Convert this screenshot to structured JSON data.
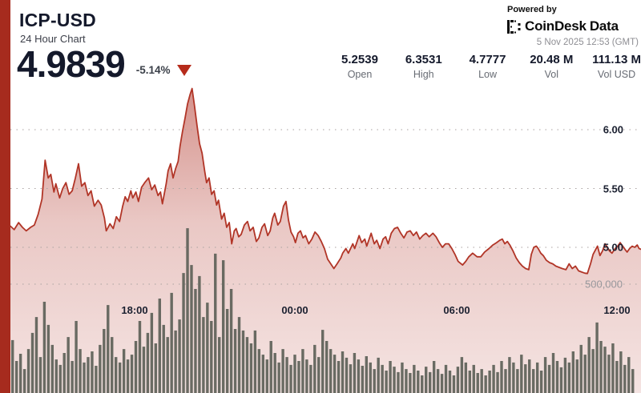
{
  "header": {
    "symbol": "ICP-USD",
    "subtitle": "24 Hour Chart",
    "price": "4.9839",
    "change": "-5.14%",
    "direction": "down"
  },
  "stats": {
    "items": [
      {
        "value": "5.2539",
        "label": "Open"
      },
      {
        "value": "6.3531",
        "label": "High"
      },
      {
        "value": "4.7777",
        "label": "Low"
      },
      {
        "value": "20.48 M",
        "label": "Vol"
      },
      {
        "value": "111.13 M",
        "label": "Vol USD"
      }
    ]
  },
  "branding": {
    "powered_by": "Powered by",
    "logo_text_1": "CoinDesk",
    "logo_text_2": "Data",
    "timestamp": "5 Nov 2025 12:53 (GMT)"
  },
  "colors": {
    "accent_bar": "#a62b1e",
    "line": "#b13527",
    "area_base": "rgb(173,42,30)",
    "volume_bar": "#5d6158",
    "grid_dot": "#a9a2a0",
    "text_dark": "#14192b",
    "text_gray": "#676b73",
    "triangle": "#b62b1b"
  },
  "chart_data": {
    "type": "area",
    "title": "ICP-USD 24 Hour Chart",
    "subtype": "price-line-with-volume-bars",
    "open": 5.2539,
    "high": 6.3531,
    "low": 4.7777,
    "close": 4.9839,
    "volume_base": "20.48 M",
    "volume_usd": "111.13 M",
    "grid": "dotted-horizontal",
    "x_axis": {
      "labels": [
        {
          "label": "18:00",
          "f": 0.197
        },
        {
          "label": "00:00",
          "f": 0.451
        },
        {
          "label": "06:00",
          "f": 0.708
        },
        {
          "label": "12:00",
          "f": 0.962
        }
      ]
    },
    "y_axis_price": {
      "side": "right",
      "ticks": [
        {
          "label": "6.00",
          "value": 6.0
        },
        {
          "label": "5.50",
          "value": 5.5
        },
        {
          "label": "5.00",
          "value": 5.0
        }
      ]
    },
    "y_axis_volume": {
      "side": "right",
      "ticks": [
        {
          "label": "500,000",
          "value": 500000
        }
      ]
    },
    "price_points": [
      [
        0,
        5.18
      ],
      [
        0.006,
        5.15
      ],
      [
        0.013,
        5.21
      ],
      [
        0.019,
        5.17
      ],
      [
        0.025,
        5.14
      ],
      [
        0.032,
        5.17
      ],
      [
        0.038,
        5.19
      ],
      [
        0.044,
        5.28
      ],
      [
        0.05,
        5.41
      ],
      [
        0.055,
        5.74
      ],
      [
        0.06,
        5.59
      ],
      [
        0.064,
        5.62
      ],
      [
        0.069,
        5.47
      ],
      [
        0.072,
        5.54
      ],
      [
        0.078,
        5.42
      ],
      [
        0.083,
        5.5
      ],
      [
        0.088,
        5.55
      ],
      [
        0.093,
        5.45
      ],
      [
        0.098,
        5.48
      ],
      [
        0.103,
        5.59
      ],
      [
        0.108,
        5.71
      ],
      [
        0.113,
        5.52
      ],
      [
        0.118,
        5.55
      ],
      [
        0.123,
        5.44
      ],
      [
        0.128,
        5.48
      ],
      [
        0.133,
        5.35
      ],
      [
        0.139,
        5.4
      ],
      [
        0.144,
        5.36
      ],
      [
        0.149,
        5.25
      ],
      [
        0.152,
        5.14
      ],
      [
        0.158,
        5.2
      ],
      [
        0.163,
        5.16
      ],
      [
        0.168,
        5.26
      ],
      [
        0.173,
        5.22
      ],
      [
        0.178,
        5.35
      ],
      [
        0.182,
        5.43
      ],
      [
        0.186,
        5.39
      ],
      [
        0.191,
        5.48
      ],
      [
        0.194,
        5.42
      ],
      [
        0.199,
        5.47
      ],
      [
        0.203,
        5.39
      ],
      [
        0.208,
        5.51
      ],
      [
        0.213,
        5.55
      ],
      [
        0.219,
        5.59
      ],
      [
        0.224,
        5.49
      ],
      [
        0.229,
        5.53
      ],
      [
        0.234,
        5.44
      ],
      [
        0.238,
        5.47
      ],
      [
        0.241,
        5.37
      ],
      [
        0.247,
        5.54
      ],
      [
        0.25,
        5.65
      ],
      [
        0.254,
        5.71
      ],
      [
        0.258,
        5.59
      ],
      [
        0.262,
        5.67
      ],
      [
        0.266,
        5.73
      ],
      [
        0.269,
        5.86
      ],
      [
        0.273,
        5.99
      ],
      [
        0.277,
        6.1
      ],
      [
        0.281,
        6.22
      ],
      [
        0.285,
        6.3
      ],
      [
        0.288,
        6.35
      ],
      [
        0.292,
        6.2
      ],
      [
        0.296,
        6.03
      ],
      [
        0.3,
        5.88
      ],
      [
        0.304,
        5.8
      ],
      [
        0.308,
        5.65
      ],
      [
        0.311,
        5.55
      ],
      [
        0.315,
        5.59
      ],
      [
        0.319,
        5.45
      ],
      [
        0.323,
        5.48
      ],
      [
        0.327,
        5.36
      ],
      [
        0.33,
        5.4
      ],
      [
        0.335,
        5.24
      ],
      [
        0.339,
        5.29
      ],
      [
        0.343,
        5.17
      ],
      [
        0.347,
        5.21
      ],
      [
        0.351,
        5.03
      ],
      [
        0.355,
        5.14
      ],
      [
        0.358,
        5.16
      ],
      [
        0.362,
        5.09
      ],
      [
        0.366,
        5.11
      ],
      [
        0.371,
        5.19
      ],
      [
        0.376,
        5.22
      ],
      [
        0.38,
        5.14
      ],
      [
        0.385,
        5.17
      ],
      [
        0.39,
        5.05
      ],
      [
        0.394,
        5.08
      ],
      [
        0.399,
        5.17
      ],
      [
        0.403,
        5.2
      ],
      [
        0.408,
        5.1
      ],
      [
        0.412,
        5.14
      ],
      [
        0.416,
        5.25
      ],
      [
        0.419,
        5.29
      ],
      [
        0.424,
        5.19
      ],
      [
        0.428,
        5.22
      ],
      [
        0.433,
        5.35
      ],
      [
        0.437,
        5.39
      ],
      [
        0.441,
        5.23
      ],
      [
        0.445,
        5.13
      ],
      [
        0.449,
        5.09
      ],
      [
        0.452,
        5.04
      ],
      [
        0.456,
        5.12
      ],
      [
        0.46,
        5.14
      ],
      [
        0.464,
        5.08
      ],
      [
        0.468,
        5.1
      ],
      [
        0.473,
        5.03
      ],
      [
        0.478,
        5.07
      ],
      [
        0.483,
        5.13
      ],
      [
        0.488,
        5.1
      ],
      [
        0.493,
        5.05
      ],
      [
        0.498,
        4.99
      ],
      [
        0.503,
        4.9
      ],
      [
        0.508,
        4.86
      ],
      [
        0.513,
        4.82
      ],
      [
        0.518,
        4.86
      ],
      [
        0.524,
        4.91
      ],
      [
        0.527,
        4.95
      ],
      [
        0.532,
        4.99
      ],
      [
        0.536,
        4.95
      ],
      [
        0.543,
        5.03
      ],
      [
        0.546,
        4.99
      ],
      [
        0.553,
        5.1
      ],
      [
        0.557,
        5.04
      ],
      [
        0.562,
        5.07
      ],
      [
        0.565,
        5.01
      ],
      [
        0.572,
        5.12
      ],
      [
        0.577,
        5.03
      ],
      [
        0.581,
        5.06
      ],
      [
        0.586,
        4.99
      ],
      [
        0.591,
        5.07
      ],
      [
        0.595,
        5.09
      ],
      [
        0.599,
        5.03
      ],
      [
        0.604,
        5.12
      ],
      [
        0.609,
        5.16
      ],
      [
        0.614,
        5.17
      ],
      [
        0.619,
        5.12
      ],
      [
        0.624,
        5.08
      ],
      [
        0.629,
        5.13
      ],
      [
        0.634,
        5.14
      ],
      [
        0.639,
        5.1
      ],
      [
        0.644,
        5.13
      ],
      [
        0.649,
        5.07
      ],
      [
        0.654,
        5.1
      ],
      [
        0.659,
        5.12
      ],
      [
        0.664,
        5.09
      ],
      [
        0.67,
        5.12
      ],
      [
        0.675,
        5.09
      ],
      [
        0.68,
        5.04
      ],
      [
        0.685,
        5.0
      ],
      [
        0.69,
        5.03
      ],
      [
        0.695,
        5.03
      ],
      [
        0.7,
        4.99
      ],
      [
        0.705,
        4.94
      ],
      [
        0.71,
        4.88
      ],
      [
        0.717,
        4.85
      ],
      [
        0.722,
        4.88
      ],
      [
        0.727,
        4.92
      ],
      [
        0.733,
        4.95
      ],
      [
        0.74,
        4.92
      ],
      [
        0.746,
        4.92
      ],
      [
        0.752,
        4.96
      ],
      [
        0.759,
        4.99
      ],
      [
        0.765,
        5.02
      ],
      [
        0.771,
        5.04
      ],
      [
        0.776,
        5.06
      ],
      [
        0.78,
        5.07
      ],
      [
        0.784,
        5.03
      ],
      [
        0.788,
        5.05
      ],
      [
        0.792,
        5.02
      ],
      [
        0.797,
        4.97
      ],
      [
        0.802,
        4.91
      ],
      [
        0.807,
        4.87
      ],
      [
        0.812,
        4.84
      ],
      [
        0.817,
        4.82
      ],
      [
        0.822,
        4.81
      ],
      [
        0.826,
        4.94
      ],
      [
        0.83,
        5.0
      ],
      [
        0.834,
        5.01
      ],
      [
        0.837,
        4.99
      ],
      [
        0.841,
        4.95
      ],
      [
        0.845,
        4.93
      ],
      [
        0.85,
        4.89
      ],
      [
        0.855,
        4.87
      ],
      [
        0.86,
        4.86
      ],
      [
        0.865,
        4.84
      ],
      [
        0.87,
        4.83
      ],
      [
        0.875,
        4.82
      ],
      [
        0.881,
        4.81
      ],
      [
        0.886,
        4.86
      ],
      [
        0.891,
        4.82
      ],
      [
        0.896,
        4.84
      ],
      [
        0.901,
        4.8
      ],
      [
        0.906,
        4.79
      ],
      [
        0.911,
        4.78
      ],
      [
        0.915,
        4.7777
      ],
      [
        0.92,
        4.86
      ],
      [
        0.924,
        4.94
      ],
      [
        0.928,
        4.98
      ],
      [
        0.931,
        5.01
      ],
      [
        0.935,
        4.93
      ],
      [
        0.939,
        4.97
      ],
      [
        0.943,
        5.03
      ],
      [
        0.947,
        5.0
      ],
      [
        0.95,
        4.97
      ],
      [
        0.954,
        4.95
      ],
      [
        0.959,
        4.99
      ],
      [
        0.963,
        5.01
      ],
      [
        0.967,
        5.04
      ],
      [
        0.971,
        5.01
      ],
      [
        0.975,
        4.98
      ],
      [
        0.978,
        4.96
      ],
      [
        0.982,
        4.99
      ],
      [
        0.986,
        5.01
      ],
      [
        0.99,
        5.0
      ],
      [
        0.994,
        5.02
      ],
      [
        0.997,
        4.99
      ],
      [
        1,
        4.9839
      ]
    ],
    "volumes": [
      243000,
      147000,
      180000,
      110000,
      202000,
      276000,
      349000,
      165000,
      419000,
      313000,
      221000,
      154000,
      129000,
      184000,
      257000,
      147000,
      331000,
      202000,
      140000,
      165000,
      191000,
      125000,
      221000,
      294000,
      404000,
      257000,
      165000,
      140000,
      202000,
      154000,
      176000,
      239000,
      331000,
      213000,
      276000,
      368000,
      228000,
      434000,
      313000,
      257000,
      460000,
      287000,
      338000,
      551000,
      757000,
      588000,
      478000,
      537000,
      349000,
      415000,
      331000,
      640000,
      257000,
      610000,
      386000,
      478000,
      294000,
      349000,
      287000,
      257000,
      228000,
      287000,
      202000,
      176000,
      154000,
      239000,
      184000,
      140000,
      202000,
      165000,
      129000,
      176000,
      147000,
      202000,
      154000,
      129000,
      221000,
      165000,
      290000,
      239000,
      202000,
      176000,
      147000,
      191000,
      162000,
      132000,
      184000,
      154000,
      125000,
      169000,
      140000,
      110000,
      162000,
      129000,
      103000,
      147000,
      121000,
      96000,
      140000,
      110000,
      92000,
      129000,
      103000,
      81000,
      121000,
      96000,
      147000,
      110000,
      88000,
      129000,
      103000,
      81000,
      121000,
      165000,
      140000,
      103000,
      129000,
      92000,
      110000,
      81000,
      103000,
      129000,
      96000,
      147000,
      110000,
      165000,
      140000,
      110000,
      176000,
      132000,
      154000,
      110000,
      140000,
      103000,
      165000,
      129000,
      184000,
      147000,
      118000,
      162000,
      140000,
      191000,
      154000,
      221000,
      176000,
      257000,
      202000,
      324000,
      239000,
      213000,
      176000,
      228000,
      147000,
      191000,
      129000,
      165000,
      110000
    ]
  }
}
